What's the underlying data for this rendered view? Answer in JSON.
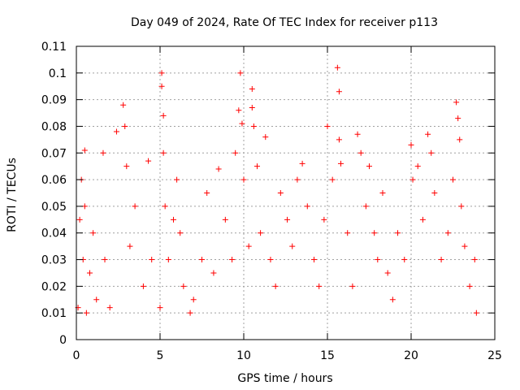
{
  "chart_data": {
    "type": "scatter",
    "title": "Day 049 of 2024, Rate Of TEC Index for receiver p113",
    "xlabel": "GPS time / hours",
    "ylabel": "ROTI / TECUs",
    "xlim": [
      0,
      25
    ],
    "ylim": [
      0,
      0.11
    ],
    "x_ticks": [
      0,
      5,
      10,
      15,
      20,
      25
    ],
    "x_tick_labels": [
      "0",
      "5",
      "10",
      "15",
      "20",
      "25"
    ],
    "y_ticks": [
      0,
      0.01,
      0.02,
      0.03,
      0.04,
      0.05,
      0.06,
      0.07,
      0.08,
      0.09,
      0.1,
      0.11
    ],
    "y_tick_labels": [
      "0",
      "0.01",
      "0.02",
      "0.03",
      "0.04",
      "0.05",
      "0.06",
      "0.07",
      "0.08",
      "0.09",
      "0.1",
      "0.11"
    ],
    "grid": true,
    "marker": "plus",
    "color": "#ff0000",
    "series": [
      {
        "x": [
          0.1,
          0.2,
          0.3,
          0.4,
          0.5,
          0.5,
          0.6,
          0.8,
          1.0,
          1.2,
          1.6,
          1.7,
          2.0,
          2.4,
          2.8,
          2.9,
          3.0,
          3.2,
          3.5,
          4.0,
          4.3,
          4.5,
          5.0,
          5.1,
          5.1,
          5.2,
          5.2,
          5.3,
          5.5,
          5.8,
          6.0,
          6.2,
          6.4,
          6.8,
          7.0,
          7.5,
          7.8,
          8.2,
          8.5,
          8.9,
          9.3,
          9.5,
          9.7,
          9.8,
          9.9,
          10.0,
          10.3,
          10.5,
          10.5,
          10.6,
          10.8,
          11.0,
          11.3,
          11.6,
          11.9,
          12.2,
          12.6,
          12.9,
          13.2,
          13.5,
          13.8,
          14.2,
          14.5,
          14.8,
          15.0,
          15.3,
          15.6,
          15.7,
          15.7,
          15.8,
          16.2,
          16.5,
          16.8,
          17.0,
          17.3,
          17.5,
          17.8,
          18.0,
          18.3,
          18.6,
          18.9,
          19.2,
          19.6,
          20.0,
          20.1,
          20.4,
          20.7,
          21.0,
          21.2,
          21.4,
          21.8,
          22.2,
          22.5,
          22.7,
          22.8,
          22.9,
          23.0,
          23.2,
          23.5,
          23.8,
          23.9
        ],
        "y": [
          0.012,
          0.045,
          0.06,
          0.03,
          0.071,
          0.05,
          0.01,
          0.025,
          0.04,
          0.015,
          0.07,
          0.03,
          0.012,
          0.078,
          0.088,
          0.08,
          0.065,
          0.035,
          0.05,
          0.02,
          0.067,
          0.03,
          0.012,
          0.1,
          0.095,
          0.084,
          0.07,
          0.05,
          0.03,
          0.045,
          0.06,
          0.04,
          0.02,
          0.01,
          0.015,
          0.03,
          0.055,
          0.025,
          0.064,
          0.045,
          0.03,
          0.07,
          0.086,
          0.1,
          0.081,
          0.06,
          0.035,
          0.094,
          0.087,
          0.08,
          0.065,
          0.04,
          0.076,
          0.03,
          0.02,
          0.055,
          0.045,
          0.035,
          0.06,
          0.066,
          0.05,
          0.03,
          0.02,
          0.045,
          0.08,
          0.06,
          0.102,
          0.093,
          0.075,
          0.066,
          0.04,
          0.02,
          0.077,
          0.07,
          0.05,
          0.065,
          0.04,
          0.03,
          0.055,
          0.025,
          0.015,
          0.04,
          0.03,
          0.073,
          0.06,
          0.065,
          0.045,
          0.077,
          0.07,
          0.055,
          0.03,
          0.04,
          0.06,
          0.089,
          0.083,
          0.075,
          0.05,
          0.035,
          0.02,
          0.03,
          0.01
        ]
      }
    ]
  }
}
